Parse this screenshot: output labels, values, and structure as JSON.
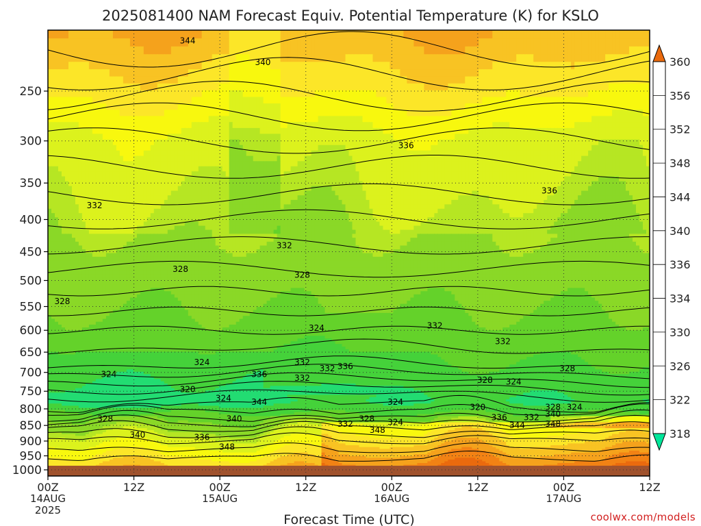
{
  "chart_data": {
    "type": "heatmap",
    "title": "2025081400 NAM Forecast Equiv. Potential Temperature (K) for KSLO",
    "xlabel": "Forecast Time (UTC)",
    "ylabel": "",
    "x_ticks": [
      {
        "label": "00Z",
        "sub": "14AUG",
        "sub2": "2025",
        "hour": 0
      },
      {
        "label": "12Z",
        "sub": "",
        "sub2": "",
        "hour": 12
      },
      {
        "label": "00Z",
        "sub": "15AUG",
        "sub2": "",
        "hour": 24
      },
      {
        "label": "12Z",
        "sub": "",
        "sub2": "",
        "hour": 36
      },
      {
        "label": "00Z",
        "sub": "16AUG",
        "sub2": "",
        "hour": 48
      },
      {
        "label": "12Z",
        "sub": "",
        "sub2": "",
        "hour": 60
      },
      {
        "label": "00Z",
        "sub": "17AUG",
        "sub2": "",
        "hour": 72
      },
      {
        "label": "12Z",
        "sub": "",
        "sub2": "",
        "hour": 84
      }
    ],
    "xlim": [
      0,
      84
    ],
    "y_ticks": [
      250,
      300,
      350,
      400,
      450,
      500,
      550,
      600,
      650,
      700,
      750,
      800,
      850,
      900,
      950,
      1000
    ],
    "ylim_hpa": [
      200,
      1000
    ],
    "y_scale": "log-pressure",
    "grid": "dotted",
    "colorbar": {
      "levels": [
        318,
        322,
        326,
        330,
        334,
        336,
        340,
        344,
        348,
        352,
        356,
        360
      ],
      "colors": [
        "#00e69a",
        "#22dc72",
        "#45d23a",
        "#64d22a",
        "#8ad827",
        "#b6e623",
        "#dcf21d",
        "#f8f80e",
        "#fce628",
        "#f8c323",
        "#f5a21c",
        "#f28214",
        "#ea6a0e"
      ],
      "extend": "both"
    },
    "contour_labels": [
      {
        "text": "344",
        "x": 19.5,
        "p": 208
      },
      {
        "text": "340",
        "x": 30,
        "p": 225
      },
      {
        "text": "336",
        "x": 50,
        "p": 305
      },
      {
        "text": "336",
        "x": 70,
        "p": 360
      },
      {
        "text": "332",
        "x": 6.5,
        "p": 380
      },
      {
        "text": "332",
        "x": 33,
        "p": 440
      },
      {
        "text": "328",
        "x": 18.5,
        "p": 480
      },
      {
        "text": "328",
        "x": 35.5,
        "p": 490
      },
      {
        "text": "328",
        "x": 2,
        "p": 540
      },
      {
        "text": "324",
        "x": 37.5,
        "p": 595
      },
      {
        "text": "332",
        "x": 54,
        "p": 590
      },
      {
        "text": "332",
        "x": 63.5,
        "p": 625
      },
      {
        "text": "324",
        "x": 21.5,
        "p": 675
      },
      {
        "text": "324",
        "x": 8.5,
        "p": 705
      },
      {
        "text": "332",
        "x": 35.5,
        "p": 675
      },
      {
        "text": "332",
        "x": 39,
        "p": 690
      },
      {
        "text": "336",
        "x": 41.5,
        "p": 685
      },
      {
        "text": "336",
        "x": 29.5,
        "p": 705
      },
      {
        "text": "332",
        "x": 35.5,
        "p": 715
      },
      {
        "text": "328",
        "x": 61,
        "p": 720
      },
      {
        "text": "324",
        "x": 65,
        "p": 725
      },
      {
        "text": "328",
        "x": 72.5,
        "p": 690
      },
      {
        "text": "320",
        "x": 19.5,
        "p": 745
      },
      {
        "text": "324",
        "x": 24.5,
        "p": 770
      },
      {
        "text": "344",
        "x": 29.5,
        "p": 780
      },
      {
        "text": "324",
        "x": 48.5,
        "p": 780
      },
      {
        "text": "320",
        "x": 60,
        "p": 795
      },
      {
        "text": "328",
        "x": 70.5,
        "p": 795
      },
      {
        "text": "324",
        "x": 73.5,
        "p": 795
      },
      {
        "text": "340",
        "x": 70.5,
        "p": 815
      },
      {
        "text": "336",
        "x": 63,
        "p": 825
      },
      {
        "text": "332",
        "x": 67.5,
        "p": 825
      },
      {
        "text": "328",
        "x": 8,
        "p": 830
      },
      {
        "text": "340",
        "x": 26,
        "p": 830
      },
      {
        "text": "328",
        "x": 44.5,
        "p": 830
      },
      {
        "text": "324",
        "x": 48.5,
        "p": 840
      },
      {
        "text": "332",
        "x": 41.5,
        "p": 845
      },
      {
        "text": "344",
        "x": 65.5,
        "p": 850
      },
      {
        "text": "348",
        "x": 70.5,
        "p": 845
      },
      {
        "text": "348",
        "x": 46,
        "p": 865
      },
      {
        "text": "340",
        "x": 12.5,
        "p": 880
      },
      {
        "text": "336",
        "x": 21.5,
        "p": 888
      },
      {
        "text": "348",
        "x": 25,
        "p": 920
      }
    ],
    "terrain_color": "#a0522d",
    "surface_p": 985
  },
  "credit": "coolwx.com/models"
}
